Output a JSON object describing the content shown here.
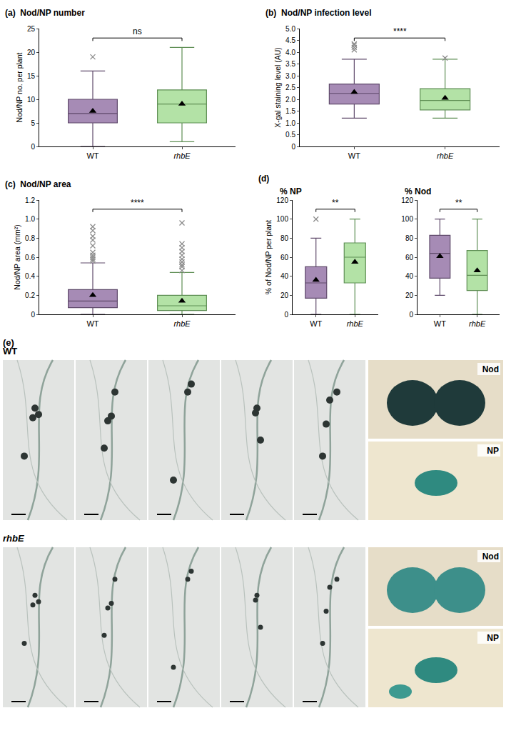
{
  "chart_data": [
    {
      "type": "box",
      "panel_label": "(a)",
      "title": "Nod/NP number",
      "y_label": "Nod/NP no. per plant",
      "categories": [
        "WT",
        "rhbE"
      ],
      "colors": [
        "#a68bb5",
        "#b3e2a6"
      ],
      "whisker_low": [
        0,
        1
      ],
      "q1": [
        5,
        5
      ],
      "median": [
        7,
        9
      ],
      "q3": [
        10,
        12
      ],
      "whisker_high": [
        16,
        21
      ],
      "mean": [
        7.5,
        9
      ],
      "outliers": [
        [
          19
        ],
        []
      ],
      "ylim": [
        0,
        25
      ],
      "yticks": [
        0,
        5,
        10,
        15,
        20,
        25
      ],
      "grid": false,
      "annotations": [
        "ns"
      ]
    },
    {
      "type": "box",
      "panel_label": "(b)",
      "title": "Nod/NP infection level",
      "y_label": "X-gal staining level (AU)",
      "categories": [
        "WT",
        "rhbE"
      ],
      "colors": [
        "#a68bb5",
        "#b3e2a6"
      ],
      "whisker_low": [
        1.2,
        1.2
      ],
      "q1": [
        1.8,
        1.55
      ],
      "median": [
        2.25,
        1.95
      ],
      "q3": [
        2.65,
        2.45
      ],
      "whisker_high": [
        3.7,
        3.7
      ],
      "mean": [
        2.3,
        2.05
      ],
      "outliers": [
        [
          4.1,
          4.2,
          4.3,
          4.35
        ],
        [
          3.75
        ]
      ],
      "ylim": [
        0,
        5
      ],
      "yticks": [
        0,
        0.5,
        {
          "value": 1,
          "label": "1.0"
        },
        1.5,
        {
          "value": 2,
          "label": "2.0"
        },
        2.5,
        {
          "value": 3,
          "label": "3.0"
        },
        3.5,
        {
          "value": 4,
          "label": "4.0"
        },
        4.5,
        {
          "value": 5,
          "label": "5.0"
        }
      ],
      "grid": false,
      "annotations": [
        "****"
      ]
    },
    {
      "type": "box",
      "panel_label": "(c)",
      "title": "Nod/NP area",
      "y_label": "Nod/NP area (mm²)",
      "categories": [
        "WT",
        "rhbE"
      ],
      "colors": [
        "#a68bb5",
        "#b3e2a6"
      ],
      "whisker_low": [
        0,
        0
      ],
      "q1": [
        0.07,
        0.04
      ],
      "median": [
        0.14,
        0.09
      ],
      "q3": [
        0.26,
        0.2
      ],
      "whisker_high": [
        0.54,
        0.44
      ],
      "mean": [
        0.2,
        0.14
      ],
      "outliers": [
        [
          0.56,
          0.58,
          0.6,
          0.62,
          0.65,
          0.72,
          0.78,
          0.82,
          0.88,
          0.92
        ],
        [
          0.46,
          0.5,
          0.52,
          0.55,
          0.58,
          0.62,
          0.66,
          0.7,
          0.74,
          0.96
        ]
      ],
      "ylim": [
        0,
        1.2
      ],
      "yticks": [
        0,
        0.2,
        0.4,
        0.6,
        0.8,
        {
          "value": 1,
          "label": "1.0"
        },
        1.2
      ],
      "grid": false,
      "annotations": [
        "****"
      ]
    },
    {
      "type": "box",
      "panel_label": "(d)",
      "title": "% NP",
      "y_label": "% of Nod/NP per plant",
      "categories": [
        "WT",
        "rhbE"
      ],
      "colors": [
        "#a68bb5",
        "#b3e2a6"
      ],
      "whisker_low": [
        0,
        0
      ],
      "q1": [
        17,
        33
      ],
      "median": [
        33,
        60
      ],
      "q3": [
        50,
        75
      ],
      "whisker_high": [
        80,
        100
      ],
      "mean": [
        36,
        55
      ],
      "outliers": [
        [
          100
        ],
        []
      ],
      "ylim": [
        0,
        120
      ],
      "yticks": [
        0,
        20,
        40,
        60,
        80,
        100,
        120
      ],
      "grid": false,
      "annotations": [
        "**"
      ]
    },
    {
      "type": "box",
      "title": "% Nod",
      "categories": [
        "WT",
        "rhbE"
      ],
      "colors": [
        "#a68bb5",
        "#b3e2a6"
      ],
      "whisker_low": [
        20,
        0
      ],
      "q1": [
        38,
        25
      ],
      "median": [
        64,
        41
      ],
      "q3": [
        83,
        67
      ],
      "whisker_high": [
        100,
        100
      ],
      "mean": [
        61,
        46
      ],
      "outliers": [
        [],
        []
      ],
      "ylim": [
        0,
        120
      ],
      "yticks": [
        0,
        20,
        40,
        60,
        80,
        100,
        120
      ],
      "grid": false,
      "annotations": [
        "**"
      ]
    }
  ],
  "photo_panel": {
    "panel_label": "(e)",
    "rows": [
      {
        "genotype": "WT",
        "insets": [
          "Nod",
          "NP"
        ]
      },
      {
        "genotype": "rhbE",
        "insets": [
          "Nod",
          "NP"
        ]
      }
    ]
  }
}
